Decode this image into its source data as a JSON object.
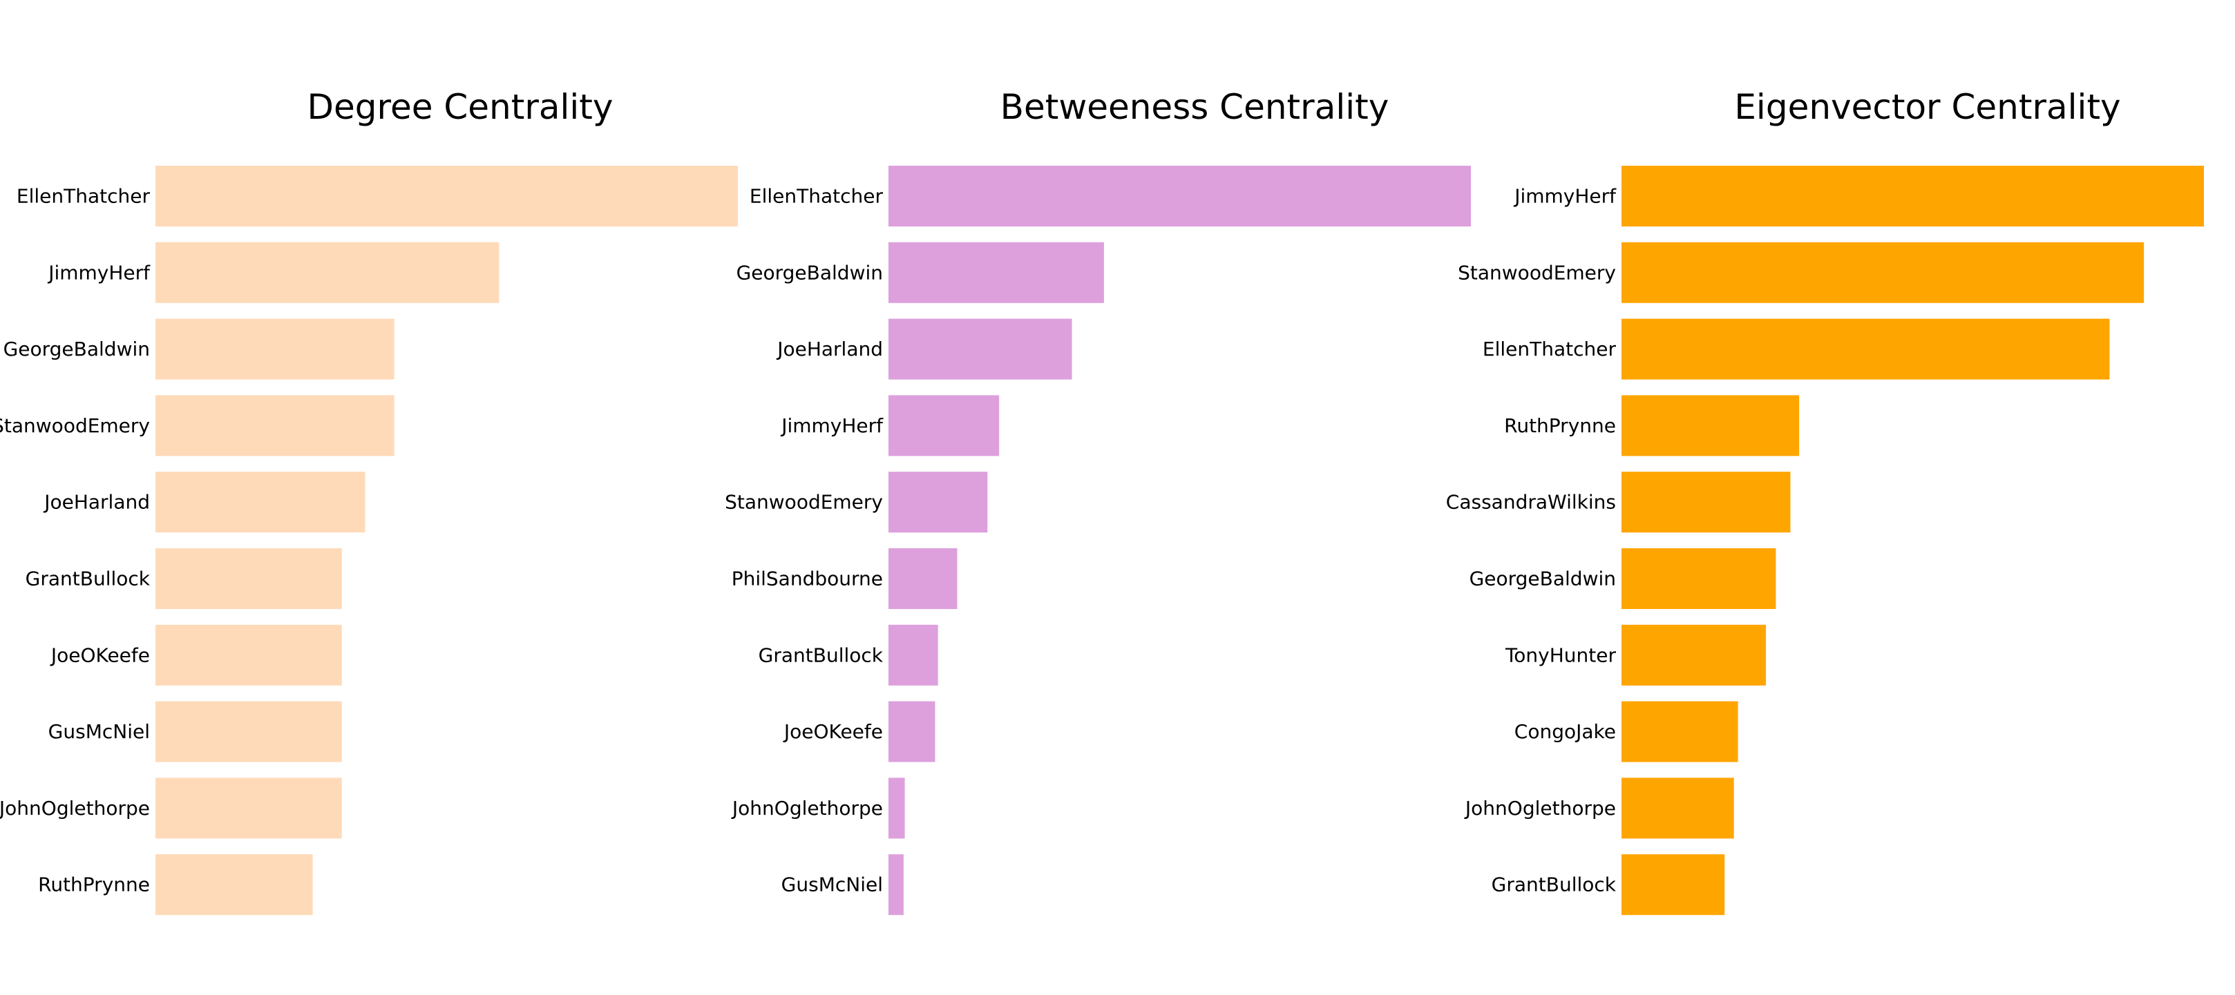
{
  "chart_data": [
    {
      "type": "bar",
      "orientation": "horizontal",
      "title": "Degree Centrality",
      "color": "#FFDAB9",
      "categories": [
        "EllenThatcher",
        "JimmyHerf",
        "GeorgeBaldwin",
        "StanwoodEmery",
        "JoeHarland",
        "GrantBullock",
        "JoeOKeefe",
        "GusMcNiel",
        "JohnOglethorpe",
        "RuthPrynne"
      ],
      "values": [
        1.0,
        0.59,
        0.41,
        0.41,
        0.36,
        0.32,
        0.32,
        0.32,
        0.32,
        0.27
      ],
      "xlim": [
        0,
        1.0
      ],
      "axes_visible": false,
      "grid": false
    },
    {
      "type": "bar",
      "orientation": "horizontal",
      "title": "Betweeness Centrality",
      "color": "#DDA0DD",
      "categories": [
        "EllenThatcher",
        "GeorgeBaldwin",
        "JoeHarland",
        "JimmyHerf",
        "StanwoodEmery",
        "PhilSandbourne",
        "GrantBullock",
        "JoeOKeefe",
        "JohnOglethorpe",
        "GusMcNiel"
      ],
      "values": [
        1.0,
        0.37,
        0.315,
        0.19,
        0.17,
        0.118,
        0.085,
        0.08,
        0.028,
        0.026
      ],
      "xlim": [
        0,
        1.0
      ],
      "axes_visible": false,
      "grid": false
    },
    {
      "type": "bar",
      "orientation": "horizontal",
      "title": "Eigenvector Centrality",
      "color": "#FFA500",
      "categories": [
        "JimmyHerf",
        "StanwoodEmery",
        "EllenThatcher",
        "RuthPrynne",
        "CassandraWilkins",
        "GeorgeBaldwin",
        "TonyHunter",
        "CongoJake",
        "JohnOglethorpe",
        "GrantBullock"
      ],
      "values": [
        1.0,
        0.897,
        0.838,
        0.305,
        0.29,
        0.265,
        0.248,
        0.2,
        0.193,
        0.177
      ],
      "xlim": [
        0,
        1.0
      ],
      "axes_visible": false,
      "grid": false
    }
  ]
}
